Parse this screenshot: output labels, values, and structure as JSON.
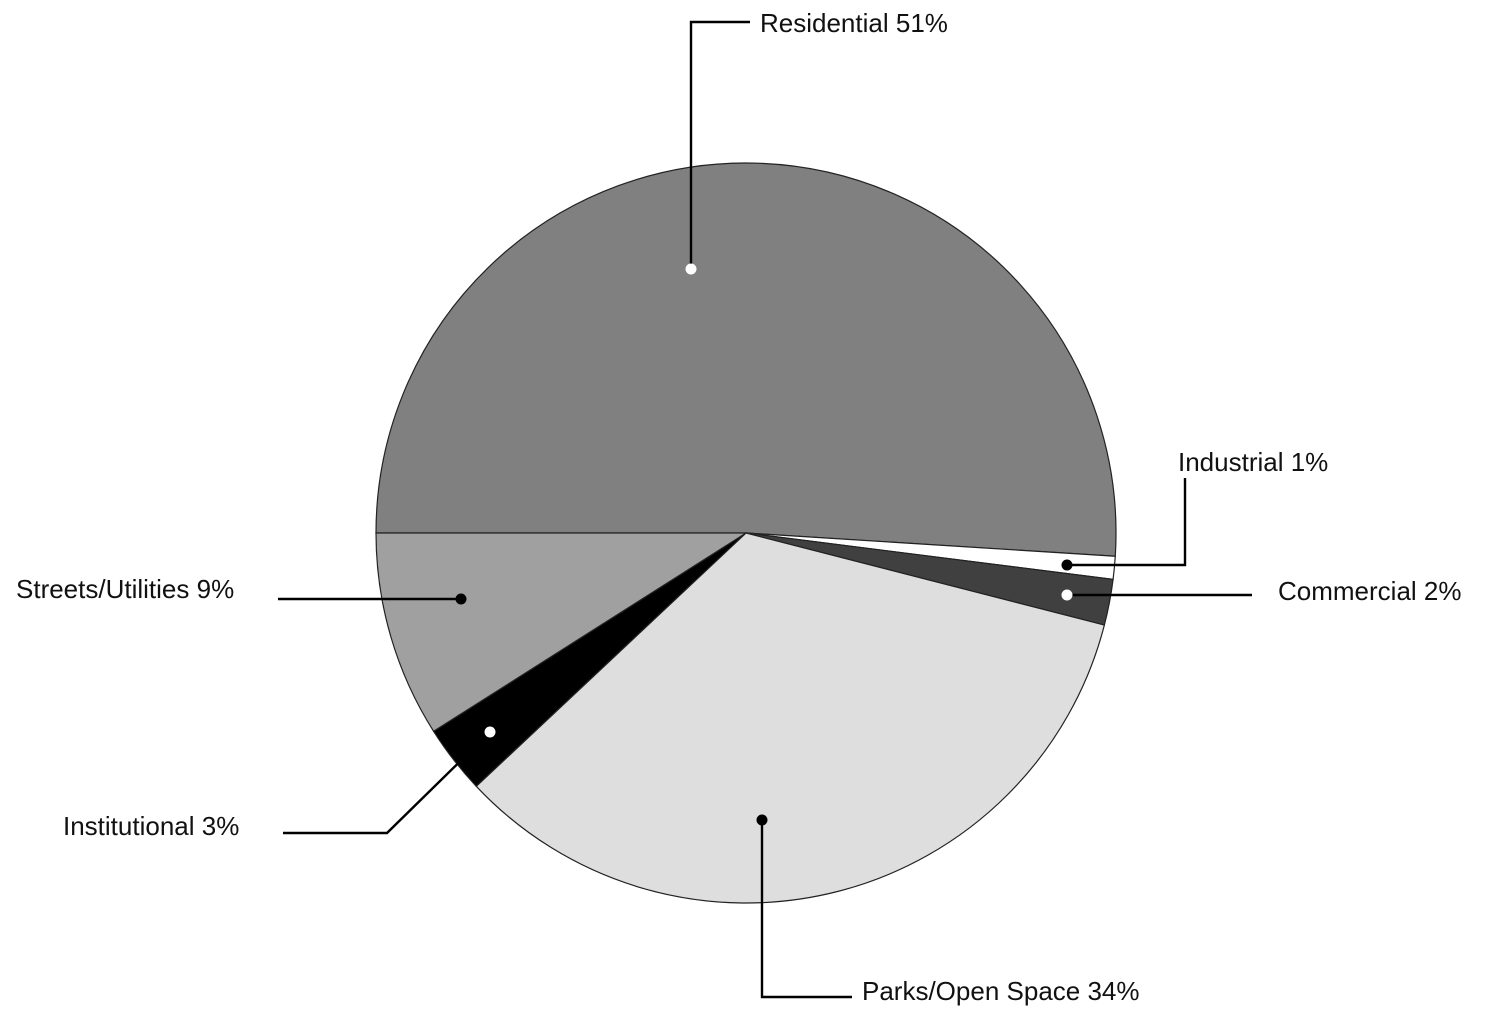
{
  "chart_data": {
    "type": "pie",
    "title": "",
    "slices": [
      {
        "key": "residential",
        "label": "Residential 51%",
        "name": "Residential",
        "value": 51,
        "color": "#808080",
        "dot": "#ffffff"
      },
      {
        "key": "industrial",
        "label": "Industrial 1%",
        "name": "Industrial",
        "value": 1,
        "color": "#ffffff",
        "dot": "#000000"
      },
      {
        "key": "commercial",
        "label": "Commercial 2%",
        "name": "Commercial",
        "value": 2,
        "color": "#404040",
        "dot": "#ffffff"
      },
      {
        "key": "parks-open-space",
        "label": "Parks/Open Space 34%",
        "name": "Parks/Open Space",
        "value": 34,
        "color": "#dedede",
        "dot": "#000000"
      },
      {
        "key": "institutional",
        "label": "Institutional 3%",
        "name": "Institutional",
        "value": 3,
        "color": "#000000",
        "dot": "#ffffff"
      },
      {
        "key": "streets-utilities",
        "label": "Streets/Utilities 9%",
        "name": "Streets/Utilities",
        "value": 9,
        "color": "#a0a0a0",
        "dot": "#000000"
      }
    ]
  }
}
